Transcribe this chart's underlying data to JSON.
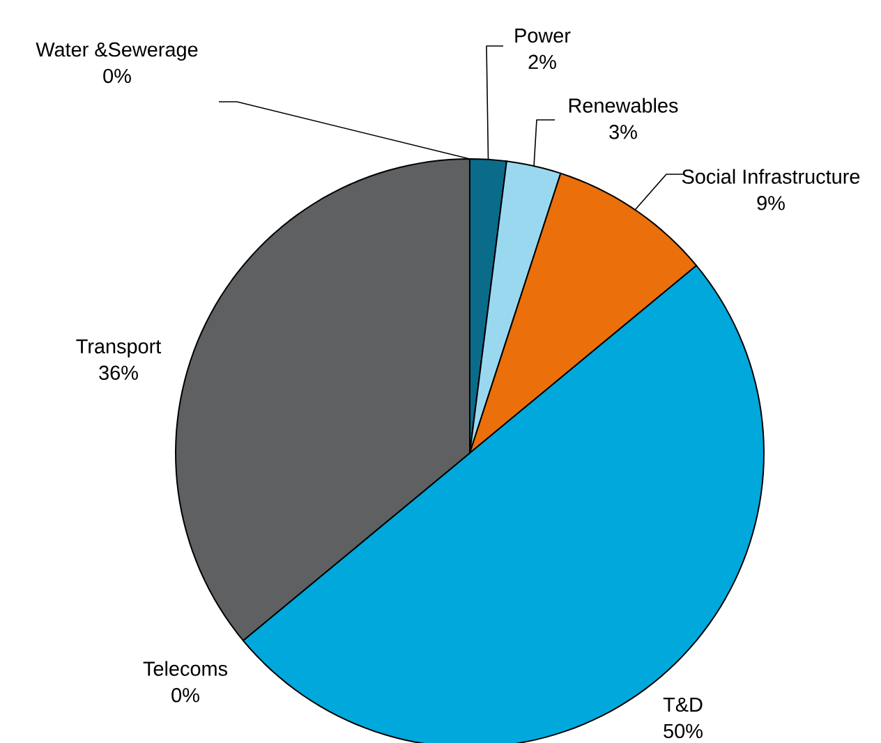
{
  "chart_data": {
    "type": "pie",
    "categories": [
      "Power",
      "Renewables",
      "Social Infrastructure",
      "T&D",
      "Telecoms",
      "Transport",
      "Water &Sewerage"
    ],
    "values": [
      2,
      3,
      9,
      50,
      0,
      36,
      0
    ],
    "value_labels": [
      "2%",
      "3%",
      "9%",
      "50%",
      "0%",
      "36%",
      "0%"
    ],
    "colors": [
      "#0b6b8a",
      "#9ad8f0",
      "#eb6f0a",
      "#00a8dc",
      null,
      "#5f6062",
      null
    ]
  }
}
